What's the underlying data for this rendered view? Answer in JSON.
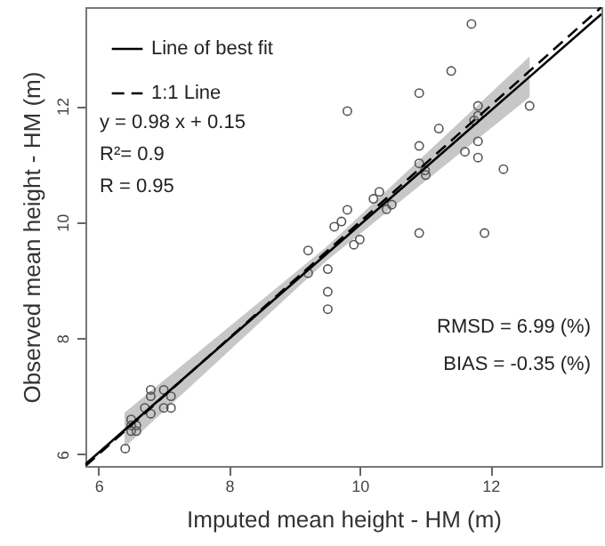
{
  "chart_data": {
    "type": "scatter",
    "xlabel": "Imputed mean height - HM (m)",
    "ylabel": "Observed mean height - HM (m)",
    "xlim": [
      5.8,
      13.7
    ],
    "ylim": [
      5.8,
      13.7
    ],
    "xticks": [
      6,
      8,
      10,
      12
    ],
    "yticks": [
      6,
      8,
      10,
      12
    ],
    "grid": false,
    "legend": "top left",
    "annotations": [
      "y =  0.98  x +  0.15",
      "R²= 0.9",
      "R = 0.95",
      "RMSD = 6.99  (%)",
      "BIAS = -0.35  (%)"
    ],
    "series": [
      {
        "type": "scatter",
        "marker": "circle",
        "color": "#555555",
        "x": [
          11.71,
          11.4,
          10.91,
          9.81,
          11.81,
          12.6,
          11.81,
          11.75,
          11.21,
          10.91,
          11.81,
          11.61,
          11.81,
          12.2,
          10.91,
          11.0,
          11.01,
          10.3,
          10.21,
          10.49,
          10.41,
          9.81,
          9.72,
          9.61,
          10.91,
          11.91,
          10.0,
          9.91,
          9.21,
          9.21,
          9.51,
          9.51,
          9.51,
          6.8,
          7.0,
          6.8,
          7.11,
          6.71,
          7.0,
          7.11,
          6.8,
          6.5,
          6.5,
          6.58,
          6.5,
          6.58,
          6.41
        ],
        "values": [
          13.41,
          12.6,
          12.22,
          11.91,
          12.0,
          12.0,
          11.83,
          11.75,
          11.61,
          11.31,
          11.39,
          11.21,
          11.11,
          10.91,
          11.01,
          10.89,
          10.81,
          10.52,
          10.4,
          10.3,
          10.22,
          10.21,
          10.01,
          9.92,
          9.81,
          9.81,
          9.7,
          9.61,
          9.51,
          9.12,
          9.19,
          8.8,
          8.5,
          7.11,
          7.11,
          7.0,
          7.0,
          6.8,
          6.8,
          6.8,
          6.7,
          6.6,
          6.5,
          6.5,
          6.4,
          6.4,
          6.1
        ]
      },
      {
        "name": "Line of best fit",
        "type": "line",
        "color": "#000000",
        "line_style": "solid",
        "x": [
          5.8,
          6.4,
          9.5,
          12.6,
          13.7
        ],
        "values": [
          5.83,
          6.42,
          9.46,
          12.5,
          13.58
        ],
        "lower": [
          null,
          6.12,
          9.34,
          12.15,
          null
        ],
        "upper": [
          null,
          6.72,
          9.58,
          12.85,
          null
        ]
      },
      {
        "name": "1:1 Line",
        "type": "line",
        "color": "#000000",
        "line_style": "dashed",
        "x": [
          5.8,
          13.7
        ],
        "values": [
          5.8,
          13.7
        ]
      }
    ]
  }
}
